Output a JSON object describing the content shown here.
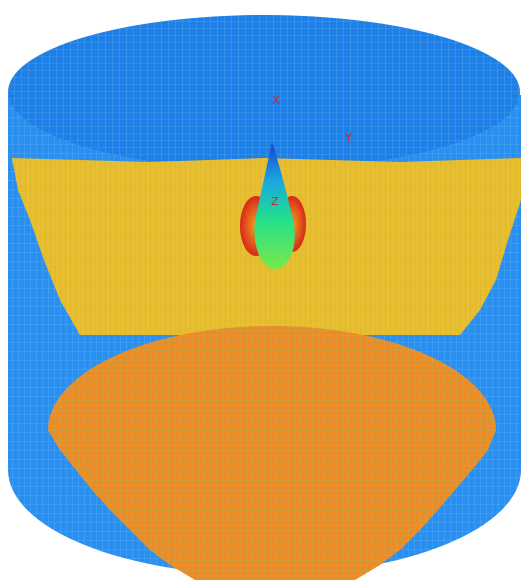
{
  "axis_labels": {
    "x": "X",
    "y": "Y",
    "z": "Z"
  }
}
